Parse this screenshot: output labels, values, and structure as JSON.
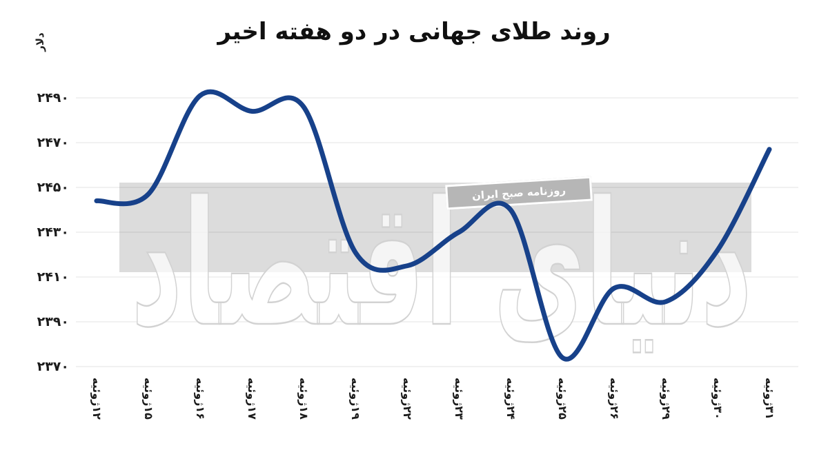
{
  "title": "روند طلای جهانی در دو هفته اخیر",
  "y_axis": {
    "unit_label": "دلار",
    "tick_labels": [
      "۲۴۹۰",
      "۲۴۷۰",
      "۲۴۵۰",
      "۲۴۳۰",
      "۲۴۱۰",
      "۲۳۹۰",
      "۲۳۷۰"
    ],
    "tick_values": [
      2490,
      2470,
      2450,
      2430,
      2410,
      2390,
      2370
    ]
  },
  "x_axis": {
    "labels": [
      "۱۲ژوئیه",
      "۱۵ژوئیه",
      "۱۶ژوئیه",
      "۱۷ژوئیه",
      "۱۸ژوئیه",
      "۱۹ژوئیه",
      "۲۲ژوئیه",
      "۲۳ژوئیه",
      "۲۴ژوئیه",
      "۲۵ژوئیه",
      "۲۶ژوئیه",
      "۲۹ژوئیه",
      "۳۰ژوئیه",
      "۳۱ژوئیه"
    ]
  },
  "watermark": {
    "logo_text": "دنیای اقتصاد",
    "ribbon_text": "روزنامه صبح ایران"
  },
  "colors": {
    "line": "#17418a",
    "gridline": "rgba(0,0,0,0.075)",
    "band": "#dcdcdc",
    "ribbon_bg": "#b6b6b6",
    "watermark_stroke": "#d2d2d2",
    "watermark_fill": "rgba(255,255,255,0.72)"
  },
  "chart_data": {
    "type": "line",
    "title": "روند طلای جهانی در دو هفته اخیر",
    "ylabel": "دلار",
    "xlabel": "",
    "categories": [
      "۱۲ژوئیه",
      "۱۵ژوئیه",
      "۱۶ژوئیه",
      "۱۷ژوئیه",
      "۱۸ژوئیه",
      "۱۹ژوئیه",
      "۲۲ژوئیه",
      "۲۳ژوئیه",
      "۲۴ژوئیه",
      "۲۵ژوئیه",
      "۲۶ژوئیه",
      "۲۹ژوئیه",
      "۳۰ژوئیه",
      "۳۱ژوئیه"
    ],
    "values": [
      2444,
      2447,
      2491,
      2484,
      2486,
      2421,
      2415,
      2430,
      2440,
      2374,
      2405,
      2399,
      2422,
      2467
    ],
    "ylim": [
      2360,
      2500
    ],
    "ytick_step": 20,
    "grid": true,
    "legend": false,
    "smooth": true,
    "line_color": "#17418a"
  }
}
